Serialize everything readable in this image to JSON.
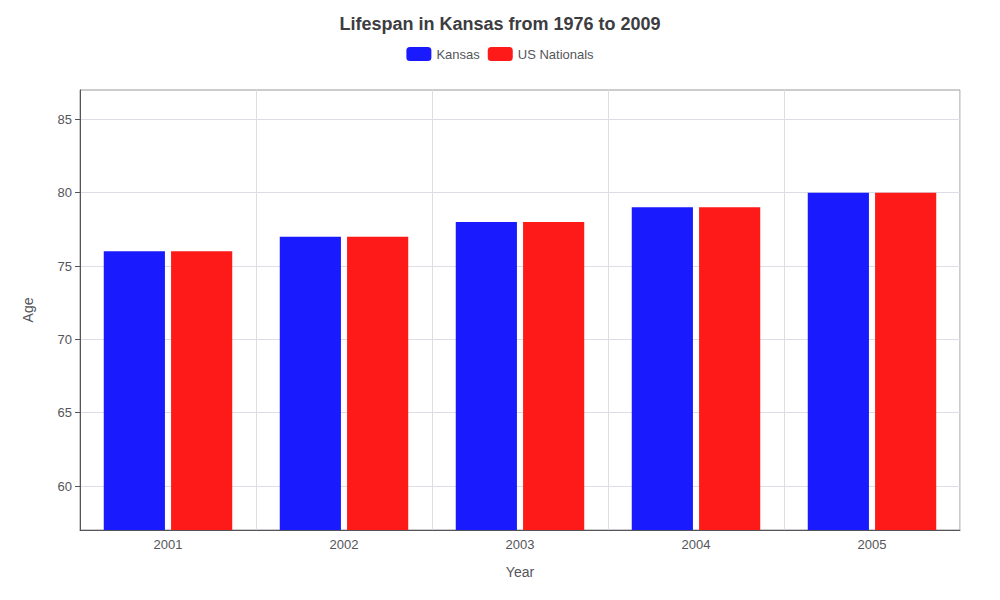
{
  "chart_data": {
    "type": "bar",
    "title": "Lifespan in Kansas from 1976 to 2009",
    "xlabel": "Year",
    "ylabel": "Age",
    "categories": [
      "2001",
      "2002",
      "2003",
      "2004",
      "2005"
    ],
    "series": [
      {
        "name": "Kansas",
        "color": "#1a1aff",
        "values": [
          76,
          77,
          78,
          79,
          80
        ]
      },
      {
        "name": "US Nationals",
        "color": "#ff1a1a",
        "values": [
          76,
          77,
          78,
          79,
          80
        ]
      }
    ],
    "ylim": [
      57,
      87
    ],
    "yticks": [
      60,
      65,
      70,
      75,
      80,
      85
    ],
    "grid": true,
    "legend": "top"
  }
}
